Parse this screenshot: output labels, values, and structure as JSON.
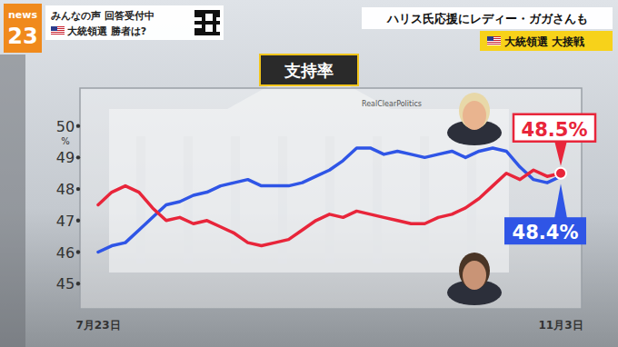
{
  "header": {
    "logo": {
      "word": "news",
      "number": "23"
    },
    "left_box": {
      "line1": "みんなの声 回答受付中",
      "line2": "大統領選 勝者は?"
    },
    "headline": "ハリス氏応援にレディー・ガガさんも",
    "tag": "大統領選 大接戦"
  },
  "chart_data": {
    "type": "line",
    "title": "支持率",
    "source": "RealClearPolitics",
    "ylabel": "%",
    "categories": [
      "7月23日",
      null,
      null,
      null,
      null,
      null,
      null,
      null,
      null,
      null,
      null,
      null,
      null,
      null,
      null,
      null,
      null,
      null,
      null,
      null,
      null,
      null,
      null,
      null,
      null,
      null,
      null,
      null,
      null,
      null,
      null,
      null,
      null,
      null,
      "11月3日"
    ],
    "ylim": [
      44.2,
      51.2
    ],
    "yticks": [
      45,
      46,
      47,
      48,
      49,
      50
    ],
    "grid": false,
    "data_labels": true,
    "series": [
      {
        "color": "#2f55e6",
        "values": [
          46.0,
          46.2,
          46.3,
          46.7,
          47.1,
          47.5,
          47.6,
          47.8,
          47.9,
          48.1,
          48.2,
          48.3,
          48.1,
          48.1,
          48.1,
          48.2,
          48.4,
          48.6,
          48.9,
          49.3,
          49.3,
          49.1,
          49.2,
          49.1,
          49.0,
          49.1,
          49.2,
          49.0,
          49.2,
          49.3,
          49.2,
          48.7,
          48.3,
          48.2,
          48.4
        ],
        "value_labels": [
          null,
          null,
          null,
          null,
          null,
          null,
          null,
          null,
          null,
          null,
          null,
          null,
          null,
          null,
          null,
          null,
          null,
          null,
          null,
          null,
          null,
          null,
          null,
          null,
          null,
          null,
          null,
          null,
          null,
          null,
          null,
          null,
          null,
          null,
          "48.4%"
        ]
      },
      {
        "color": "#e8253a",
        "values": [
          47.5,
          47.9,
          48.1,
          47.9,
          47.4,
          47.0,
          47.1,
          46.9,
          47.0,
          46.8,
          46.6,
          46.3,
          46.2,
          46.3,
          46.4,
          46.7,
          47.0,
          47.2,
          47.1,
          47.3,
          47.2,
          47.1,
          47.0,
          46.9,
          46.9,
          47.1,
          47.2,
          47.4,
          47.7,
          48.1,
          48.5,
          48.3,
          48.6,
          48.4,
          48.5
        ],
        "value_labels": [
          null,
          null,
          null,
          null,
          null,
          null,
          null,
          null,
          null,
          null,
          null,
          null,
          null,
          null,
          null,
          null,
          null,
          null,
          null,
          null,
          null,
          null,
          null,
          null,
          null,
          null,
          null,
          null,
          null,
          null,
          null,
          null,
          null,
          null,
          "48.5%"
        ]
      }
    ]
  }
}
